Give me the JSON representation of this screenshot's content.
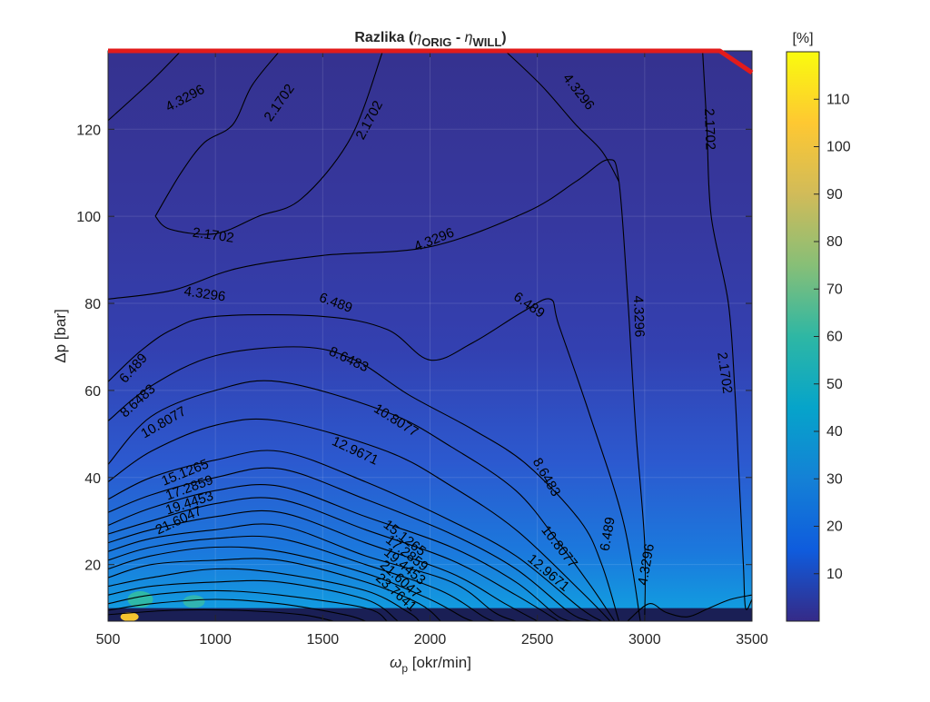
{
  "chart_data": {
    "type": "contour",
    "title": {
      "prefix": "Razlika (",
      "eta1": "η",
      "sub1": "ORIG",
      "minus": " - ",
      "eta2": "η",
      "sub2": "WILL",
      "suffix": ")"
    },
    "xlabel": {
      "sym": "ω",
      "sub": "p",
      "unit": " [okr/min]"
    },
    "ylabel": "Δp  [bar]",
    "xlim": [
      500,
      3500
    ],
    "ylim": [
      7,
      138
    ],
    "xticks": [
      500,
      1000,
      1500,
      2000,
      2500,
      3000,
      3500
    ],
    "yticks": [
      20,
      40,
      60,
      80,
      100,
      120
    ],
    "colorbar": {
      "label": "[%]",
      "clim": [
        0,
        120
      ],
      "ticks": [
        10,
        20,
        30,
        40,
        50,
        60,
        70,
        80,
        90,
        100,
        110
      ]
    },
    "contour_levels": [
      "2.1702",
      "4.3296",
      "6.489",
      "8.6483",
      "10.8077",
      "12.9671",
      "15.1265",
      "17.2859",
      "19.4453",
      "21.6047",
      "23.7641"
    ],
    "contour_lines": [
      {
        "level": "4.3296",
        "points": [
          [
            500,
            122
          ],
          [
            700,
            131
          ],
          [
            840,
            138
          ]
        ]
      },
      {
        "level": "2.1702",
        "points": [
          [
            720,
            100
          ],
          [
            840,
            110
          ],
          [
            950,
            117
          ],
          [
            1080,
            121
          ],
          [
            1170,
            130
          ],
          [
            1300,
            138
          ]
        ]
      },
      {
        "level": "2.1702",
        "points": [
          [
            720,
            100
          ],
          [
            790,
            97
          ],
          [
            1000,
            96
          ],
          [
            1200,
            100
          ],
          [
            1400,
            104
          ],
          [
            1630,
            118
          ],
          [
            1780,
            138
          ]
        ]
      },
      {
        "level": "4.3296",
        "points": [
          [
            500,
            81
          ],
          [
            800,
            83
          ],
          [
            1100,
            88
          ],
          [
            1500,
            91
          ],
          [
            2000,
            93
          ],
          [
            2450,
            101
          ],
          [
            2680,
            108
          ],
          [
            2830,
            113
          ],
          [
            2880,
            108
          ],
          [
            2920,
            82
          ],
          [
            2935,
            70
          ],
          [
            2960,
            50
          ],
          [
            3000,
            25
          ],
          [
            3000,
            7
          ]
        ]
      },
      {
        "level": "4.3296",
        "points": [
          [
            2350,
            138
          ],
          [
            2520,
            130
          ],
          [
            2680,
            121
          ],
          [
            2800,
            115
          ],
          [
            2880,
            108
          ]
        ]
      },
      {
        "level": "6.489",
        "points": [
          [
            500,
            62
          ],
          [
            650,
            69
          ],
          [
            800,
            74
          ],
          [
            1000,
            77
          ],
          [
            1500,
            77
          ],
          [
            1800,
            74
          ],
          [
            2000,
            67
          ],
          [
            2200,
            71
          ],
          [
            2430,
            78
          ],
          [
            2560,
            81
          ],
          [
            2600,
            75
          ],
          [
            2740,
            55
          ],
          [
            2900,
            30
          ],
          [
            2980,
            7
          ]
        ]
      },
      {
        "level": "8.6483",
        "points": [
          [
            500,
            53
          ],
          [
            700,
            61
          ],
          [
            1000,
            68
          ],
          [
            1400,
            70
          ],
          [
            1650,
            67
          ],
          [
            1900,
            59
          ],
          [
            2200,
            51
          ],
          [
            2450,
            43
          ],
          [
            2700,
            30
          ],
          [
            2800,
            20
          ],
          [
            2880,
            7
          ]
        ]
      },
      {
        "level": "10.8077",
        "points": [
          [
            500,
            43
          ],
          [
            700,
            54
          ],
          [
            1000,
            60
          ],
          [
            1300,
            62
          ],
          [
            1800,
            55
          ],
          [
            2100,
            47
          ],
          [
            2400,
            37
          ],
          [
            2600,
            25
          ],
          [
            2750,
            15
          ],
          [
            2860,
            7
          ]
        ]
      },
      {
        "level": "12.9671",
        "points": [
          [
            500,
            39
          ],
          [
            700,
            46
          ],
          [
            1000,
            52
          ],
          [
            1300,
            53
          ],
          [
            1800,
            46
          ],
          [
            2100,
            38
          ],
          [
            2400,
            28
          ],
          [
            2700,
            14
          ],
          [
            2840,
            7
          ]
        ]
      },
      {
        "level": "15.1265",
        "points": [
          [
            500,
            35
          ],
          [
            700,
            40
          ],
          [
            1000,
            44
          ],
          [
            1300,
            46
          ],
          [
            1700,
            39
          ],
          [
            2100,
            30
          ],
          [
            2400,
            22
          ],
          [
            2700,
            10
          ],
          [
            2800,
            7
          ]
        ]
      },
      {
        "level": "17.2859",
        "points": [
          [
            500,
            32
          ],
          [
            700,
            36
          ],
          [
            1000,
            40
          ],
          [
            1300,
            42
          ],
          [
            1700,
            35
          ],
          [
            2100,
            27
          ],
          [
            2400,
            19
          ],
          [
            2650,
            9
          ],
          [
            2750,
            7
          ]
        ]
      },
      {
        "level": "19.4453",
        "points": [
          [
            500,
            29
          ],
          [
            700,
            33
          ],
          [
            1000,
            37
          ],
          [
            1300,
            38
          ],
          [
            1700,
            31
          ],
          [
            2100,
            24
          ],
          [
            2400,
            16
          ],
          [
            2600,
            8
          ],
          [
            2700,
            7
          ]
        ]
      },
      {
        "level": "21.6047",
        "points": [
          [
            500,
            27
          ],
          [
            700,
            30
          ],
          [
            1000,
            34
          ],
          [
            1300,
            35
          ],
          [
            1700,
            28
          ],
          [
            2100,
            21
          ],
          [
            2400,
            13
          ],
          [
            2600,
            7
          ]
        ]
      },
      {
        "level": "23.7641",
        "points": [
          [
            500,
            25
          ],
          [
            700,
            28
          ],
          [
            1000,
            31
          ],
          [
            1300,
            32
          ],
          [
            1700,
            25
          ],
          [
            2100,
            18
          ],
          [
            2350,
            11
          ],
          [
            2500,
            7
          ]
        ]
      },
      {
        "level": "",
        "points": [
          [
            500,
            23
          ],
          [
            700,
            26
          ],
          [
            1000,
            28
          ],
          [
            1300,
            29
          ],
          [
            1700,
            22
          ],
          [
            2100,
            16
          ],
          [
            2300,
            9
          ],
          [
            2400,
            7
          ]
        ]
      },
      {
        "level": "",
        "points": [
          [
            500,
            21
          ],
          [
            700,
            24
          ],
          [
            1000,
            26
          ],
          [
            1300,
            26
          ],
          [
            1700,
            20
          ],
          [
            2050,
            14
          ],
          [
            2250,
            8
          ],
          [
            2300,
            7
          ]
        ]
      },
      {
        "level": "",
        "points": [
          [
            500,
            19
          ],
          [
            700,
            22
          ],
          [
            1000,
            24
          ],
          [
            1300,
            23
          ],
          [
            1700,
            18
          ],
          [
            2000,
            12
          ],
          [
            2150,
            8
          ],
          [
            2200,
            7
          ]
        ]
      },
      {
        "level": "",
        "points": [
          [
            500,
            17
          ],
          [
            700,
            20
          ],
          [
            1000,
            21
          ],
          [
            1300,
            21
          ],
          [
            1700,
            16
          ],
          [
            1950,
            11
          ],
          [
            2050,
            7
          ]
        ]
      },
      {
        "level": "",
        "points": [
          [
            500,
            15
          ],
          [
            700,
            17
          ],
          [
            1000,
            19
          ],
          [
            1300,
            18
          ],
          [
            1700,
            14
          ],
          [
            1900,
            9
          ],
          [
            1950,
            7
          ]
        ]
      },
      {
        "level": "",
        "points": [
          [
            500,
            13
          ],
          [
            700,
            15
          ],
          [
            1000,
            16
          ],
          [
            1300,
            16
          ],
          [
            1700,
            12
          ],
          [
            1850,
            7
          ]
        ]
      },
      {
        "level": "",
        "points": [
          [
            500,
            11
          ],
          [
            700,
            13
          ],
          [
            1000,
            14
          ],
          [
            1300,
            13
          ],
          [
            1700,
            10
          ],
          [
            1800,
            7
          ]
        ]
      },
      {
        "level": "",
        "points": [
          [
            500,
            9.5
          ],
          [
            700,
            11
          ],
          [
            1000,
            12
          ],
          [
            1300,
            11
          ],
          [
            1600,
            8.5
          ],
          [
            1700,
            7
          ]
        ]
      },
      {
        "level": "",
        "points": [
          [
            500,
            8.5
          ],
          [
            800,
            9.5
          ],
          [
            1100,
            9.5
          ],
          [
            1400,
            8.5
          ],
          [
            1550,
            7
          ]
        ]
      },
      {
        "level": "2.1702",
        "points": [
          [
            3270,
            138
          ],
          [
            3290,
            120
          ],
          [
            3310,
            100
          ],
          [
            3390,
            80
          ],
          [
            3420,
            60
          ],
          [
            3440,
            40
          ],
          [
            3460,
            20
          ],
          [
            3470,
            10
          ],
          [
            3500,
            12
          ]
        ]
      },
      {
        "level": "",
        "points": [
          [
            2920,
            7
          ],
          [
            3020,
            11
          ],
          [
            3100,
            9
          ],
          [
            3200,
            8
          ],
          [
            3300,
            10
          ],
          [
            3400,
            12
          ],
          [
            3500,
            13
          ]
        ]
      }
    ],
    "contour_labels": [
      {
        "text": "4.3296",
        "x": 860,
        "y": 127,
        "rot": -28
      },
      {
        "text": "2.1702",
        "x": 1300,
        "y": 126,
        "rot": -55
      },
      {
        "text": "2.1702",
        "x": 1720,
        "y": 122,
        "rot": -62
      },
      {
        "text": "2.1702",
        "x": 990,
        "y": 95.5,
        "rot": 8
      },
      {
        "text": "4.3296",
        "x": 2020,
        "y": 94.5,
        "rot": -22
      },
      {
        "text": "4.3296",
        "x": 2690,
        "y": 128.5,
        "rot": 52
      },
      {
        "text": "2.1702",
        "x": 3300,
        "y": 120,
        "rot": 88
      },
      {
        "text": "4.3296",
        "x": 950,
        "y": 82,
        "rot": 8
      },
      {
        "text": "6.489",
        "x": 1560,
        "y": 80,
        "rot": 20
      },
      {
        "text": "6.489",
        "x": 2460,
        "y": 79.5,
        "rot": 35
      },
      {
        "text": "4.3296",
        "x": 2970,
        "y": 77,
        "rot": 88
      },
      {
        "text": "2.1702",
        "x": 3370,
        "y": 64,
        "rot": 82
      },
      {
        "text": "6.489",
        "x": 620,
        "y": 65,
        "rot": -48
      },
      {
        "text": "8.6483",
        "x": 1620,
        "y": 67,
        "rot": 25
      },
      {
        "text": "8.6483",
        "x": 640,
        "y": 57.5,
        "rot": -42
      },
      {
        "text": "10.8077",
        "x": 1840,
        "y": 53,
        "rot": 32
      },
      {
        "text": "10.8077",
        "x": 760,
        "y": 52.5,
        "rot": -30
      },
      {
        "text": "12.9671",
        "x": 1650,
        "y": 46,
        "rot": 25
      },
      {
        "text": "15.1265",
        "x": 860,
        "y": 41,
        "rot": -22
      },
      {
        "text": "17.2859",
        "x": 880,
        "y": 37.5,
        "rot": -20
      },
      {
        "text": "19.4453",
        "x": 880,
        "y": 34,
        "rot": -18
      },
      {
        "text": "21.6047",
        "x": 830,
        "y": 30,
        "rot": -25
      },
      {
        "text": "8.6483",
        "x": 2540,
        "y": 40,
        "rot": 60
      },
      {
        "text": "15.1265",
        "x": 1880,
        "y": 26,
        "rot": 38
      },
      {
        "text": "17.2859",
        "x": 1890,
        "y": 22.5,
        "rot": 38
      },
      {
        "text": "19.4453",
        "x": 1880,
        "y": 19.5,
        "rot": 40
      },
      {
        "text": "21.6047",
        "x": 1860,
        "y": 16.5,
        "rot": 42
      },
      {
        "text": "23.7641",
        "x": 1840,
        "y": 13.5,
        "rot": 42
      },
      {
        "text": "10.8077",
        "x": 2600,
        "y": 24,
        "rot": 52
      },
      {
        "text": "12.9671",
        "x": 2550,
        "y": 18,
        "rot": 40
      },
      {
        "text": "6.489",
        "x": 2830,
        "y": 27,
        "rot": -80
      },
      {
        "text": "4.3296",
        "x": 3010,
        "y": 20,
        "rot": -80
      }
    ],
    "constraint_line": {
      "color": "#e21b1b",
      "points": [
        [
          500,
          138
        ],
        [
          3350,
          138
        ],
        [
          3500,
          133
        ]
      ]
    },
    "colors": {
      "low": "#352a87",
      "bg": "#3b3b99",
      "high": "#f9fb0e",
      "line": "#000000",
      "constraint": "#e21b1b"
    },
    "grid": true,
    "colormap": "parula"
  }
}
